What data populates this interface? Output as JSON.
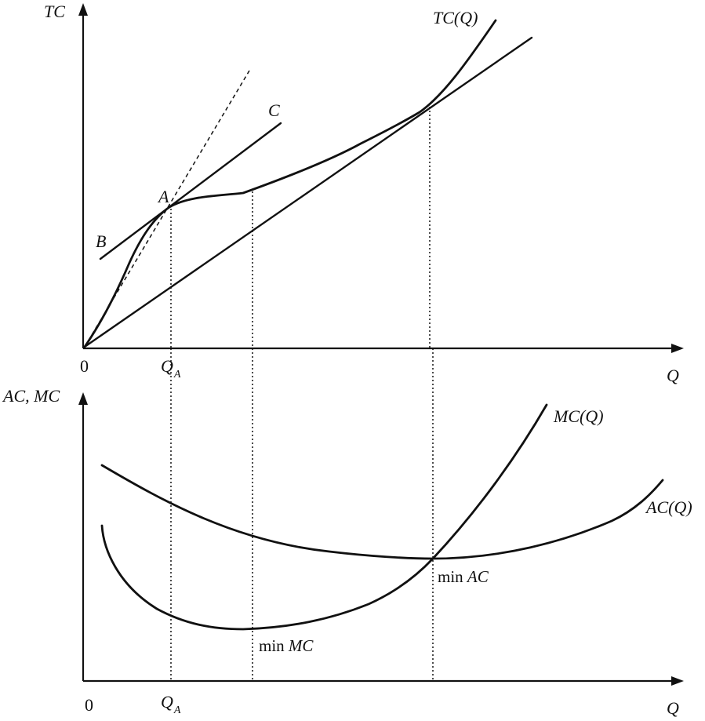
{
  "top_panel": {
    "y_axis_label": "TC",
    "x_axis_label": "Q",
    "origin_label": "0",
    "qa_label": "Q",
    "qa_subscript": "A",
    "curve_label": "TC(Q)",
    "point_a_label": "A",
    "point_b_label": "B",
    "point_c_label": "C"
  },
  "bottom_panel": {
    "y_axis_label": "AC, MC",
    "x_axis_label": "Q",
    "origin_label": "0",
    "qa_label": "Q",
    "qa_subscript": "A",
    "mc_curve_label": "MC(Q)",
    "ac_curve_label": "AC(Q)",
    "min_ac_prefix": "min ",
    "min_ac_var": "AC",
    "min_mc_prefix": "min ",
    "min_mc_var": "MC"
  },
  "colors": {
    "ink": "#111111",
    "background": "#ffffff"
  }
}
